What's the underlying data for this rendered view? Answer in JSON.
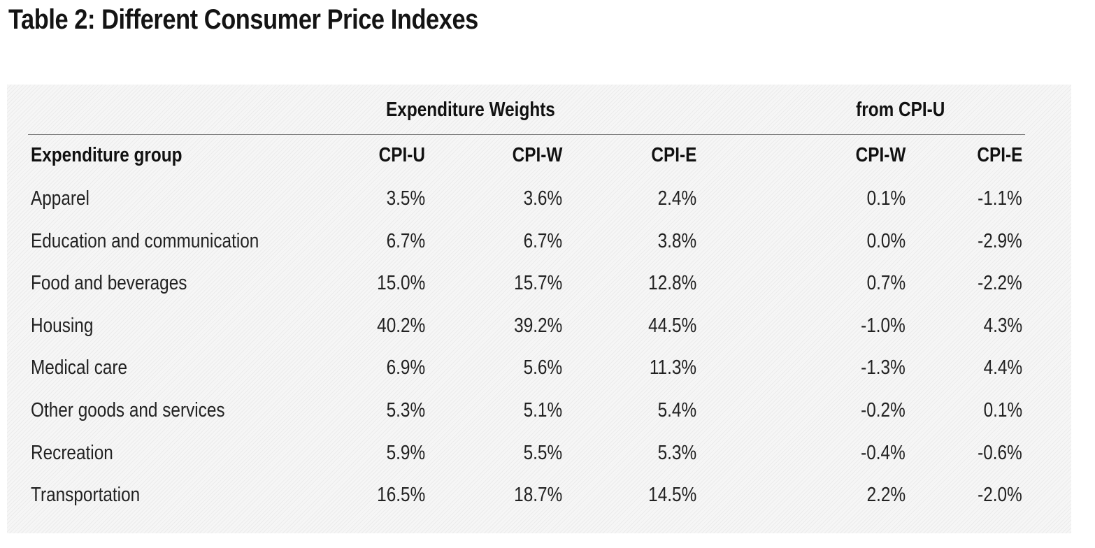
{
  "title": "Table 2: Different Consumer Price Indexes",
  "table": {
    "group_headers": {
      "weights": "Expenditure Weights",
      "diff": "from CPI-U"
    },
    "columns": [
      "Expenditure group",
      "CPI-U",
      "CPI-W",
      "CPI-E",
      "CPI-W",
      "CPI-E"
    ],
    "rows": [
      {
        "group": "Apparel",
        "cpi_u": "3.5%",
        "cpi_w": "3.6%",
        "cpi_e": "2.4%",
        "diff_w": "0.1%",
        "diff_e": "-1.1%"
      },
      {
        "group": "Education and communication",
        "cpi_u": "6.7%",
        "cpi_w": "6.7%",
        "cpi_e": "3.8%",
        "diff_w": "0.0%",
        "diff_e": "-2.9%"
      },
      {
        "group": "Food and beverages",
        "cpi_u": "15.0%",
        "cpi_w": "15.7%",
        "cpi_e": "12.8%",
        "diff_w": "0.7%",
        "diff_e": "-2.2%"
      },
      {
        "group": "Housing",
        "cpi_u": "40.2%",
        "cpi_w": "39.2%",
        "cpi_e": "44.5%",
        "diff_w": "-1.0%",
        "diff_e": "4.3%"
      },
      {
        "group": "Medical care",
        "cpi_u": "6.9%",
        "cpi_w": "5.6%",
        "cpi_e": "11.3%",
        "diff_w": "-1.3%",
        "diff_e": "4.4%"
      },
      {
        "group": "Other goods and services",
        "cpi_u": "5.3%",
        "cpi_w": "5.1%",
        "cpi_e": "5.4%",
        "diff_w": "-0.2%",
        "diff_e": "0.1%"
      },
      {
        "group": "Recreation",
        "cpi_u": "5.9%",
        "cpi_w": "5.5%",
        "cpi_e": "5.3%",
        "diff_w": "-0.4%",
        "diff_e": "-0.6%"
      },
      {
        "group": "Transportation",
        "cpi_u": "16.5%",
        "cpi_w": "18.7%",
        "cpi_e": "14.5%",
        "diff_w": "2.2%",
        "diff_e": "-2.0%"
      }
    ]
  }
}
